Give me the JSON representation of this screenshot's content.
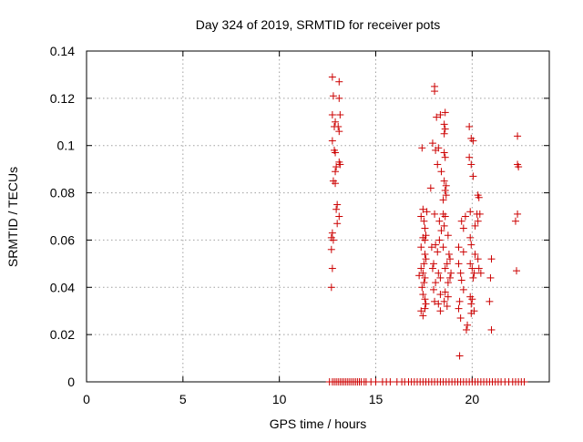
{
  "chart_data": {
    "type": "scatter",
    "title": "Day 324 of 2019, SRMTID for receiver pots",
    "xlabel": "GPS time / hours",
    "ylabel": "SRMTID / TECUs",
    "xlim": [
      0,
      24
    ],
    "ylim": [
      0,
      0.14
    ],
    "xticks": [
      0,
      5,
      10,
      15,
      20
    ],
    "xtick_labels": [
      "0",
      "5",
      "10",
      "15",
      "20"
    ],
    "yticks": [
      0,
      0.02,
      0.04,
      0.06,
      0.08,
      0.1,
      0.12,
      0.14
    ],
    "ytick_labels": [
      "0",
      "0.02",
      "0.04",
      "0.06",
      "0.08",
      "0.1",
      "0.12",
      "0.14"
    ],
    "grid": true,
    "legend": "none",
    "marker": "+",
    "color": "#cc0000",
    "series": [
      {
        "points": [
          [
            12.75,
            0.129
          ],
          [
            13.1,
            0.127
          ],
          [
            12.8,
            0.121
          ],
          [
            13.1,
            0.12
          ],
          [
            12.75,
            0.113
          ],
          [
            13.15,
            0.113
          ],
          [
            12.9,
            0.11
          ],
          [
            12.85,
            0.108
          ],
          [
            13.05,
            0.108
          ],
          [
            13.1,
            0.106
          ],
          [
            12.75,
            0.102
          ],
          [
            12.85,
            0.098
          ],
          [
            12.9,
            0.097
          ],
          [
            13.1,
            0.093
          ],
          [
            13.15,
            0.092
          ],
          [
            12.95,
            0.091
          ],
          [
            12.9,
            0.089
          ],
          [
            12.8,
            0.085
          ],
          [
            12.9,
            0.084
          ],
          [
            13.0,
            0.075
          ],
          [
            12.95,
            0.073
          ],
          [
            13.1,
            0.07
          ],
          [
            13.0,
            0.067
          ],
          [
            12.75,
            0.063
          ],
          [
            12.7,
            0.061
          ],
          [
            12.8,
            0.06
          ],
          [
            12.7,
            0.056
          ],
          [
            12.75,
            0.048
          ],
          [
            12.7,
            0.04
          ],
          [
            18.05,
            0.125
          ],
          [
            18.05,
            0.123
          ],
          [
            18.6,
            0.114
          ],
          [
            18.35,
            0.113
          ],
          [
            18.15,
            0.112
          ],
          [
            18.55,
            0.109
          ],
          [
            19.85,
            0.108
          ],
          [
            18.6,
            0.107
          ],
          [
            18.55,
            0.105
          ],
          [
            19.95,
            0.103
          ],
          [
            20.05,
            0.102
          ],
          [
            17.95,
            0.101
          ],
          [
            18.25,
            0.099
          ],
          [
            17.4,
            0.099
          ],
          [
            18.1,
            0.098
          ],
          [
            18.55,
            0.097
          ],
          [
            18.6,
            0.095
          ],
          [
            19.85,
            0.095
          ],
          [
            18.2,
            0.092
          ],
          [
            19.95,
            0.092
          ],
          [
            18.4,
            0.089
          ],
          [
            20.05,
            0.087
          ],
          [
            18.55,
            0.085
          ],
          [
            18.65,
            0.083
          ],
          [
            17.85,
            0.082
          ],
          [
            18.6,
            0.081
          ],
          [
            18.65,
            0.079
          ],
          [
            20.3,
            0.079
          ],
          [
            20.35,
            0.078
          ],
          [
            18.5,
            0.077
          ],
          [
            17.45,
            0.073
          ],
          [
            17.65,
            0.072
          ],
          [
            18.05,
            0.071
          ],
          [
            18.5,
            0.071
          ],
          [
            19.9,
            0.072
          ],
          [
            20.25,
            0.071
          ],
          [
            20.4,
            0.071
          ],
          [
            17.35,
            0.07
          ],
          [
            18.6,
            0.07
          ],
          [
            19.65,
            0.07
          ],
          [
            17.5,
            0.068
          ],
          [
            18.3,
            0.068
          ],
          [
            19.45,
            0.068
          ],
          [
            20.3,
            0.068
          ],
          [
            17.55,
            0.065
          ],
          [
            18.55,
            0.066
          ],
          [
            18.4,
            0.064
          ],
          [
            19.55,
            0.065
          ],
          [
            20.15,
            0.066
          ],
          [
            17.6,
            0.062
          ],
          [
            17.45,
            0.061
          ],
          [
            18.75,
            0.062
          ],
          [
            17.55,
            0.06
          ],
          [
            18.3,
            0.06
          ],
          [
            19.9,
            0.061
          ],
          [
            18.1,
            0.058
          ],
          [
            17.35,
            0.057
          ],
          [
            17.9,
            0.057
          ],
          [
            18.5,
            0.057
          ],
          [
            19.3,
            0.057
          ],
          [
            19.95,
            0.058
          ],
          [
            17.55,
            0.054
          ],
          [
            18.2,
            0.055
          ],
          [
            18.8,
            0.054
          ],
          [
            19.55,
            0.055
          ],
          [
            20.15,
            0.054
          ],
          [
            17.6,
            0.052
          ],
          [
            18.85,
            0.052
          ],
          [
            20.3,
            0.052
          ],
          [
            21.0,
            0.052
          ],
          [
            17.5,
            0.05
          ],
          [
            18.0,
            0.05
          ],
          [
            18.7,
            0.05
          ],
          [
            19.3,
            0.05
          ],
          [
            19.9,
            0.05
          ],
          [
            17.35,
            0.048
          ],
          [
            17.95,
            0.048
          ],
          [
            18.6,
            0.048
          ],
          [
            20.0,
            0.048
          ],
          [
            20.35,
            0.048
          ],
          [
            17.45,
            0.046
          ],
          [
            18.25,
            0.046
          ],
          [
            18.9,
            0.046
          ],
          [
            19.4,
            0.046
          ],
          [
            20.1,
            0.046
          ],
          [
            20.45,
            0.046
          ],
          [
            17.25,
            0.045
          ],
          [
            17.55,
            0.044
          ],
          [
            18.35,
            0.044
          ],
          [
            18.85,
            0.044
          ],
          [
            19.45,
            0.043
          ],
          [
            20.05,
            0.044
          ],
          [
            20.95,
            0.044
          ],
          [
            17.5,
            0.042
          ],
          [
            18.1,
            0.042
          ],
          [
            18.75,
            0.042
          ],
          [
            17.4,
            0.04
          ],
          [
            18.0,
            0.039
          ],
          [
            18.6,
            0.038
          ],
          [
            19.55,
            0.039
          ],
          [
            17.45,
            0.037
          ],
          [
            18.35,
            0.037
          ],
          [
            18.75,
            0.036
          ],
          [
            19.9,
            0.036
          ],
          [
            17.55,
            0.035
          ],
          [
            18.05,
            0.034
          ],
          [
            18.55,
            0.034
          ],
          [
            19.35,
            0.034
          ],
          [
            20.0,
            0.035
          ],
          [
            20.9,
            0.034
          ],
          [
            17.6,
            0.033
          ],
          [
            18.25,
            0.033
          ],
          [
            18.7,
            0.032
          ],
          [
            19.95,
            0.033
          ],
          [
            17.35,
            0.03
          ],
          [
            17.55,
            0.031
          ],
          [
            18.35,
            0.03
          ],
          [
            19.3,
            0.031
          ],
          [
            20.1,
            0.03
          ],
          [
            17.45,
            0.028
          ],
          [
            19.95,
            0.029
          ],
          [
            19.4,
            0.027
          ],
          [
            19.75,
            0.024
          ],
          [
            19.7,
            0.022
          ],
          [
            21.0,
            0.022
          ],
          [
            19.35,
            0.011
          ],
          [
            22.35,
            0.104
          ],
          [
            22.35,
            0.092
          ],
          [
            22.4,
            0.091
          ],
          [
            22.35,
            0.071
          ],
          [
            22.25,
            0.068
          ],
          [
            22.3,
            0.047
          ],
          [
            12.6,
            0
          ],
          [
            12.75,
            0
          ],
          [
            12.85,
            0
          ],
          [
            12.95,
            0
          ],
          [
            13.05,
            0
          ],
          [
            13.15,
            0
          ],
          [
            13.25,
            0
          ],
          [
            13.35,
            0
          ],
          [
            13.45,
            0
          ],
          [
            13.55,
            0
          ],
          [
            13.65,
            0
          ],
          [
            13.75,
            0
          ],
          [
            13.85,
            0
          ],
          [
            13.95,
            0
          ],
          [
            14.05,
            0
          ],
          [
            14.15,
            0
          ],
          [
            14.25,
            0
          ],
          [
            14.4,
            0
          ],
          [
            14.5,
            0
          ],
          [
            14.75,
            0
          ],
          [
            15.0,
            0
          ],
          [
            15.35,
            0
          ],
          [
            15.55,
            0
          ],
          [
            15.75,
            0
          ],
          [
            16.1,
            0
          ],
          [
            16.35,
            0
          ],
          [
            16.5,
            0
          ],
          [
            16.7,
            0
          ],
          [
            16.85,
            0
          ],
          [
            17.0,
            0
          ],
          [
            17.15,
            0
          ],
          [
            17.3,
            0
          ],
          [
            17.45,
            0
          ],
          [
            17.6,
            0
          ],
          [
            17.75,
            0
          ],
          [
            17.9,
            0
          ],
          [
            18.05,
            0
          ],
          [
            18.2,
            0
          ],
          [
            18.35,
            0
          ],
          [
            18.5,
            0
          ],
          [
            18.65,
            0
          ],
          [
            18.8,
            0
          ],
          [
            18.95,
            0
          ],
          [
            19.1,
            0
          ],
          [
            19.25,
            0
          ],
          [
            19.4,
            0
          ],
          [
            19.55,
            0
          ],
          [
            19.7,
            0
          ],
          [
            19.85,
            0
          ],
          [
            20.0,
            0
          ],
          [
            20.15,
            0
          ],
          [
            20.3,
            0
          ],
          [
            20.45,
            0
          ],
          [
            20.6,
            0
          ],
          [
            20.75,
            0
          ],
          [
            20.9,
            0
          ],
          [
            21.05,
            0
          ],
          [
            21.2,
            0
          ],
          [
            21.35,
            0
          ],
          [
            21.5,
            0
          ],
          [
            21.7,
            0
          ],
          [
            21.9,
            0
          ],
          [
            22.1,
            0
          ],
          [
            22.25,
            0
          ],
          [
            22.4,
            0
          ],
          [
            22.55,
            0
          ],
          [
            22.7,
            0
          ]
        ]
      }
    ]
  }
}
